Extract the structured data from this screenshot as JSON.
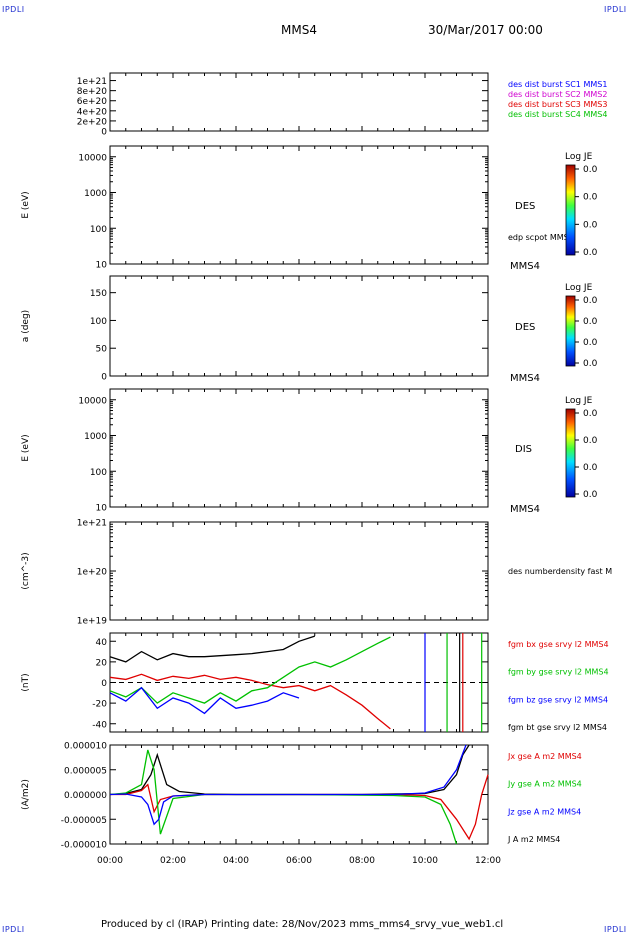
{
  "corner_label": "IPDLI",
  "header": {
    "spacecraft": "MMS4",
    "datetime": "30/Mar/2017 00:00"
  },
  "footer": {
    "text": "Produced by cl (IRAP)   Printing date: 28/Nov/2023   mms_mms4_srvy_vue_web1.cl"
  },
  "colors": {
    "black": "#000000",
    "red": "#e00000",
    "green": "#00c000",
    "blue": "#0000ff",
    "magenta": "#d000d0"
  },
  "chart_data": [
    {
      "type": "line",
      "panel": "1",
      "xlim": [
        "00:00",
        "12:00"
      ],
      "ylim": [
        0,
        1.15e+21
      ],
      "yticks": [
        "0",
        "2e+20",
        "4e+20",
        "6e+20",
        "8e+20",
        "1e+21"
      ],
      "reference_line": {
        "y": 0,
        "style": "dashed"
      },
      "legend": [
        {
          "label": "des dist burst SC1 MMS1",
          "color": "#0000ff"
        },
        {
          "label": "des dist burst SC2 MMS2",
          "color": "#d000d0"
        },
        {
          "label": "des dist burst SC3 MMS3",
          "color": "#e00000"
        },
        {
          "label": "des dist burst SC4 MMS4",
          "color": "#00c000"
        }
      ]
    },
    {
      "type": "heatmap",
      "panel": "2",
      "ylabel": "E (eV)",
      "yscale": "log",
      "ylim": [
        10,
        20000
      ],
      "yticks": [
        "10",
        "100",
        "1000",
        "10000"
      ],
      "side_label": "DES",
      "extra_label": "edp scpot MMS4",
      "bottom_label": "MMS4",
      "colorbar": {
        "title": "Log JE",
        "ticks": [
          "0.0",
          "0.0",
          "0.0",
          "0.0"
        ]
      }
    },
    {
      "type": "heatmap",
      "panel": "3",
      "ylabel": "a (deg)",
      "ylim": [
        0,
        180
      ],
      "yticks": [
        "0",
        "50",
        "100",
        "150"
      ],
      "side_label": "DES",
      "bottom_label": "MMS4",
      "colorbar": {
        "title": "Log JE",
        "ticks": [
          "0.0",
          "0.0",
          "0.0",
          "0.0"
        ]
      }
    },
    {
      "type": "heatmap",
      "panel": "4",
      "ylabel": "E (eV)",
      "yscale": "log",
      "ylim": [
        10,
        20000
      ],
      "yticks": [
        "10",
        "100",
        "1000",
        "10000"
      ],
      "side_label": "DIS",
      "bottom_label": "MMS4",
      "colorbar": {
        "title": "Log JE",
        "ticks": [
          "0.0",
          "0.0",
          "0.0",
          "0.0"
        ]
      }
    },
    {
      "type": "line",
      "panel": "5",
      "ylabel": "(cm^-3)",
      "yscale": "log",
      "ylim": [
        1e+19,
        1e+21
      ],
      "yticks": [
        "1e+19",
        "1e+20",
        "1e+21"
      ],
      "legend": [
        {
          "label": "des numberdensity fast M",
          "color": "#000000"
        }
      ]
    },
    {
      "type": "line",
      "panel": "6",
      "ylabel": "(nT)",
      "ylim": [
        -48,
        48
      ],
      "yticks": [
        "-40",
        "-20",
        "0",
        "20",
        "40"
      ],
      "reference_line": {
        "y": 0,
        "style": "dashed"
      },
      "legend": [
        {
          "label": "fgm bx gse srvy l2 MMS4",
          "color": "#e00000"
        },
        {
          "label": "fgm by gse srvy l2 MMS4",
          "color": "#00c000"
        },
        {
          "label": "fgm bz gse srvy l2 MMS4",
          "color": "#0000ff"
        },
        {
          "label": "fgm bt gse srvy l2 MMS4",
          "color": "#000000"
        }
      ],
      "series": [
        {
          "name": "fgm bx gse srvy l2 MMS4",
          "color": "#e00000",
          "x": [
            0,
            0.5,
            1,
            1.5,
            2,
            2.5,
            3,
            3.5,
            4,
            4.5,
            5,
            5.5,
            6,
            6.5,
            7,
            7.5,
            8,
            8.5,
            8.9
          ],
          "y": [
            5,
            3,
            8,
            2,
            6,
            4,
            7,
            3,
            5,
            2,
            -2,
            -5,
            -3,
            -8,
            -3,
            -12,
            -22,
            -35,
            -45
          ]
        },
        {
          "name": "fgm by gse srvy l2 MMS4",
          "color": "#00c000",
          "x": [
            0,
            0.5,
            1,
            1.5,
            2,
            2.5,
            3,
            3.5,
            4,
            4.5,
            5,
            5.5,
            6,
            6.5,
            7,
            7.5,
            8,
            8.5,
            8.9
          ],
          "y": [
            -8,
            -14,
            -5,
            -20,
            -10,
            -15,
            -20,
            -10,
            -18,
            -8,
            -5,
            5,
            15,
            20,
            15,
            22,
            30,
            38,
            44
          ]
        },
        {
          "name": "fgm bz gse srvy l2 MMS4",
          "color": "#0000ff",
          "x": [
            0,
            0.5,
            1,
            1.5,
            2,
            2.5,
            3,
            3.5,
            4,
            4.5,
            5,
            5.5,
            6
          ],
          "y": [
            -10,
            -18,
            -5,
            -25,
            -15,
            -20,
            -30,
            -15,
            -25,
            -22,
            -18,
            -10,
            -15
          ]
        },
        {
          "name": "fgm bt gse srvy l2 MMS4",
          "color": "#000000",
          "x": [
            0,
            0.5,
            1,
            1.5,
            2,
            2.5,
            3,
            3.5,
            4,
            4.5,
            5,
            5.5,
            6,
            6.5
          ],
          "y": [
            25,
            20,
            30,
            22,
            28,
            25,
            25,
            26,
            27,
            28,
            30,
            32,
            40,
            45
          ]
        }
      ],
      "vertical_lines": [
        {
          "x": 10.0,
          "color": "#0000ff"
        },
        {
          "x": 10.7,
          "color": "#00c000"
        },
        {
          "x": 11.1,
          "color": "#000000"
        },
        {
          "x": 11.2,
          "color": "#e00000"
        },
        {
          "x": 11.8,
          "color": "#00c000"
        }
      ]
    },
    {
      "type": "line",
      "panel": "7",
      "ylabel": "(A/m2)",
      "ylim": [
        -1e-05,
        1e-05
      ],
      "yticks": [
        "-0.000010",
        "-0.000005",
        "0.000000",
        "0.000005",
        "0.000010"
      ],
      "xlim": [
        "00:00",
        "12:00"
      ],
      "xticks": [
        "00:00",
        "02:00",
        "04:00",
        "06:00",
        "08:00",
        "10:00",
        "12:00"
      ],
      "legend": [
        {
          "label": "Jx gse A m2 MMS4",
          "color": "#e00000"
        },
        {
          "label": "Jy gse A m2 MMS4",
          "color": "#00c000"
        },
        {
          "label": "Jz gse A m2 MMS4",
          "color": "#0000ff"
        },
        {
          "label": "J A m2 MMS4",
          "color": "#000000"
        }
      ],
      "series": [
        {
          "name": "J A m2 MMS4",
          "color": "#000000",
          "x": [
            0,
            0.5,
            1,
            1.3,
            1.5,
            1.8,
            2.2,
            3,
            4,
            6,
            8,
            10,
            10.6,
            11,
            11.2,
            11.4
          ],
          "y": [
            0.0,
            2e-07,
            1e-06,
            4e-06,
            8e-06,
            2e-06,
            6e-07,
            1e-07,
            0.0,
            0.0,
            0.0,
            2e-07,
            1e-06,
            4e-06,
            8e-06,
            1e-05
          ]
        },
        {
          "name": "Jx gse A m2 MMS4",
          "color": "#e00000",
          "x": [
            0,
            0.5,
            1,
            1.2,
            1.4,
            1.6,
            2,
            3,
            6,
            9,
            10,
            10.5,
            11,
            11.4,
            11.6,
            11.8,
            12
          ],
          "y": [
            0.0,
            0.0,
            8e-07,
            2e-06,
            -3.5e-06,
            -1e-06,
            -3e-07,
            0.0,
            0.0,
            0.0,
            -2e-07,
            -1e-06,
            -5e-06,
            -9e-06,
            -6e-06,
            0.0,
            4e-06
          ]
        },
        {
          "name": "Jy gse A m2 MMS4",
          "color": "#00c000",
          "x": [
            0,
            0.5,
            1,
            1.2,
            1.4,
            1.6,
            2,
            3,
            6,
            9,
            10,
            10.5,
            10.8,
            11
          ],
          "y": [
            0.0,
            3e-07,
            2e-06,
            9e-06,
            5e-06,
            -8e-06,
            -8e-07,
            0.0,
            0.0,
            -2e-07,
            -5e-07,
            -2e-06,
            -6e-06,
            -1e-05
          ]
        },
        {
          "name": "Jz gse A m2 MMS4",
          "color": "#0000ff",
          "x": [
            0,
            0.5,
            1,
            1.2,
            1.4,
            1.55,
            1.7,
            2,
            3,
            6,
            9,
            10,
            10.6,
            11,
            11.3
          ],
          "y": [
            0.0,
            1e-07,
            -5e-07,
            -2e-06,
            -6e-06,
            -5e-06,
            -1.5e-06,
            -3e-07,
            0.0,
            0.0,
            0.0,
            3e-07,
            1.5e-06,
            5e-06,
            1e-05
          ]
        }
      ]
    }
  ]
}
